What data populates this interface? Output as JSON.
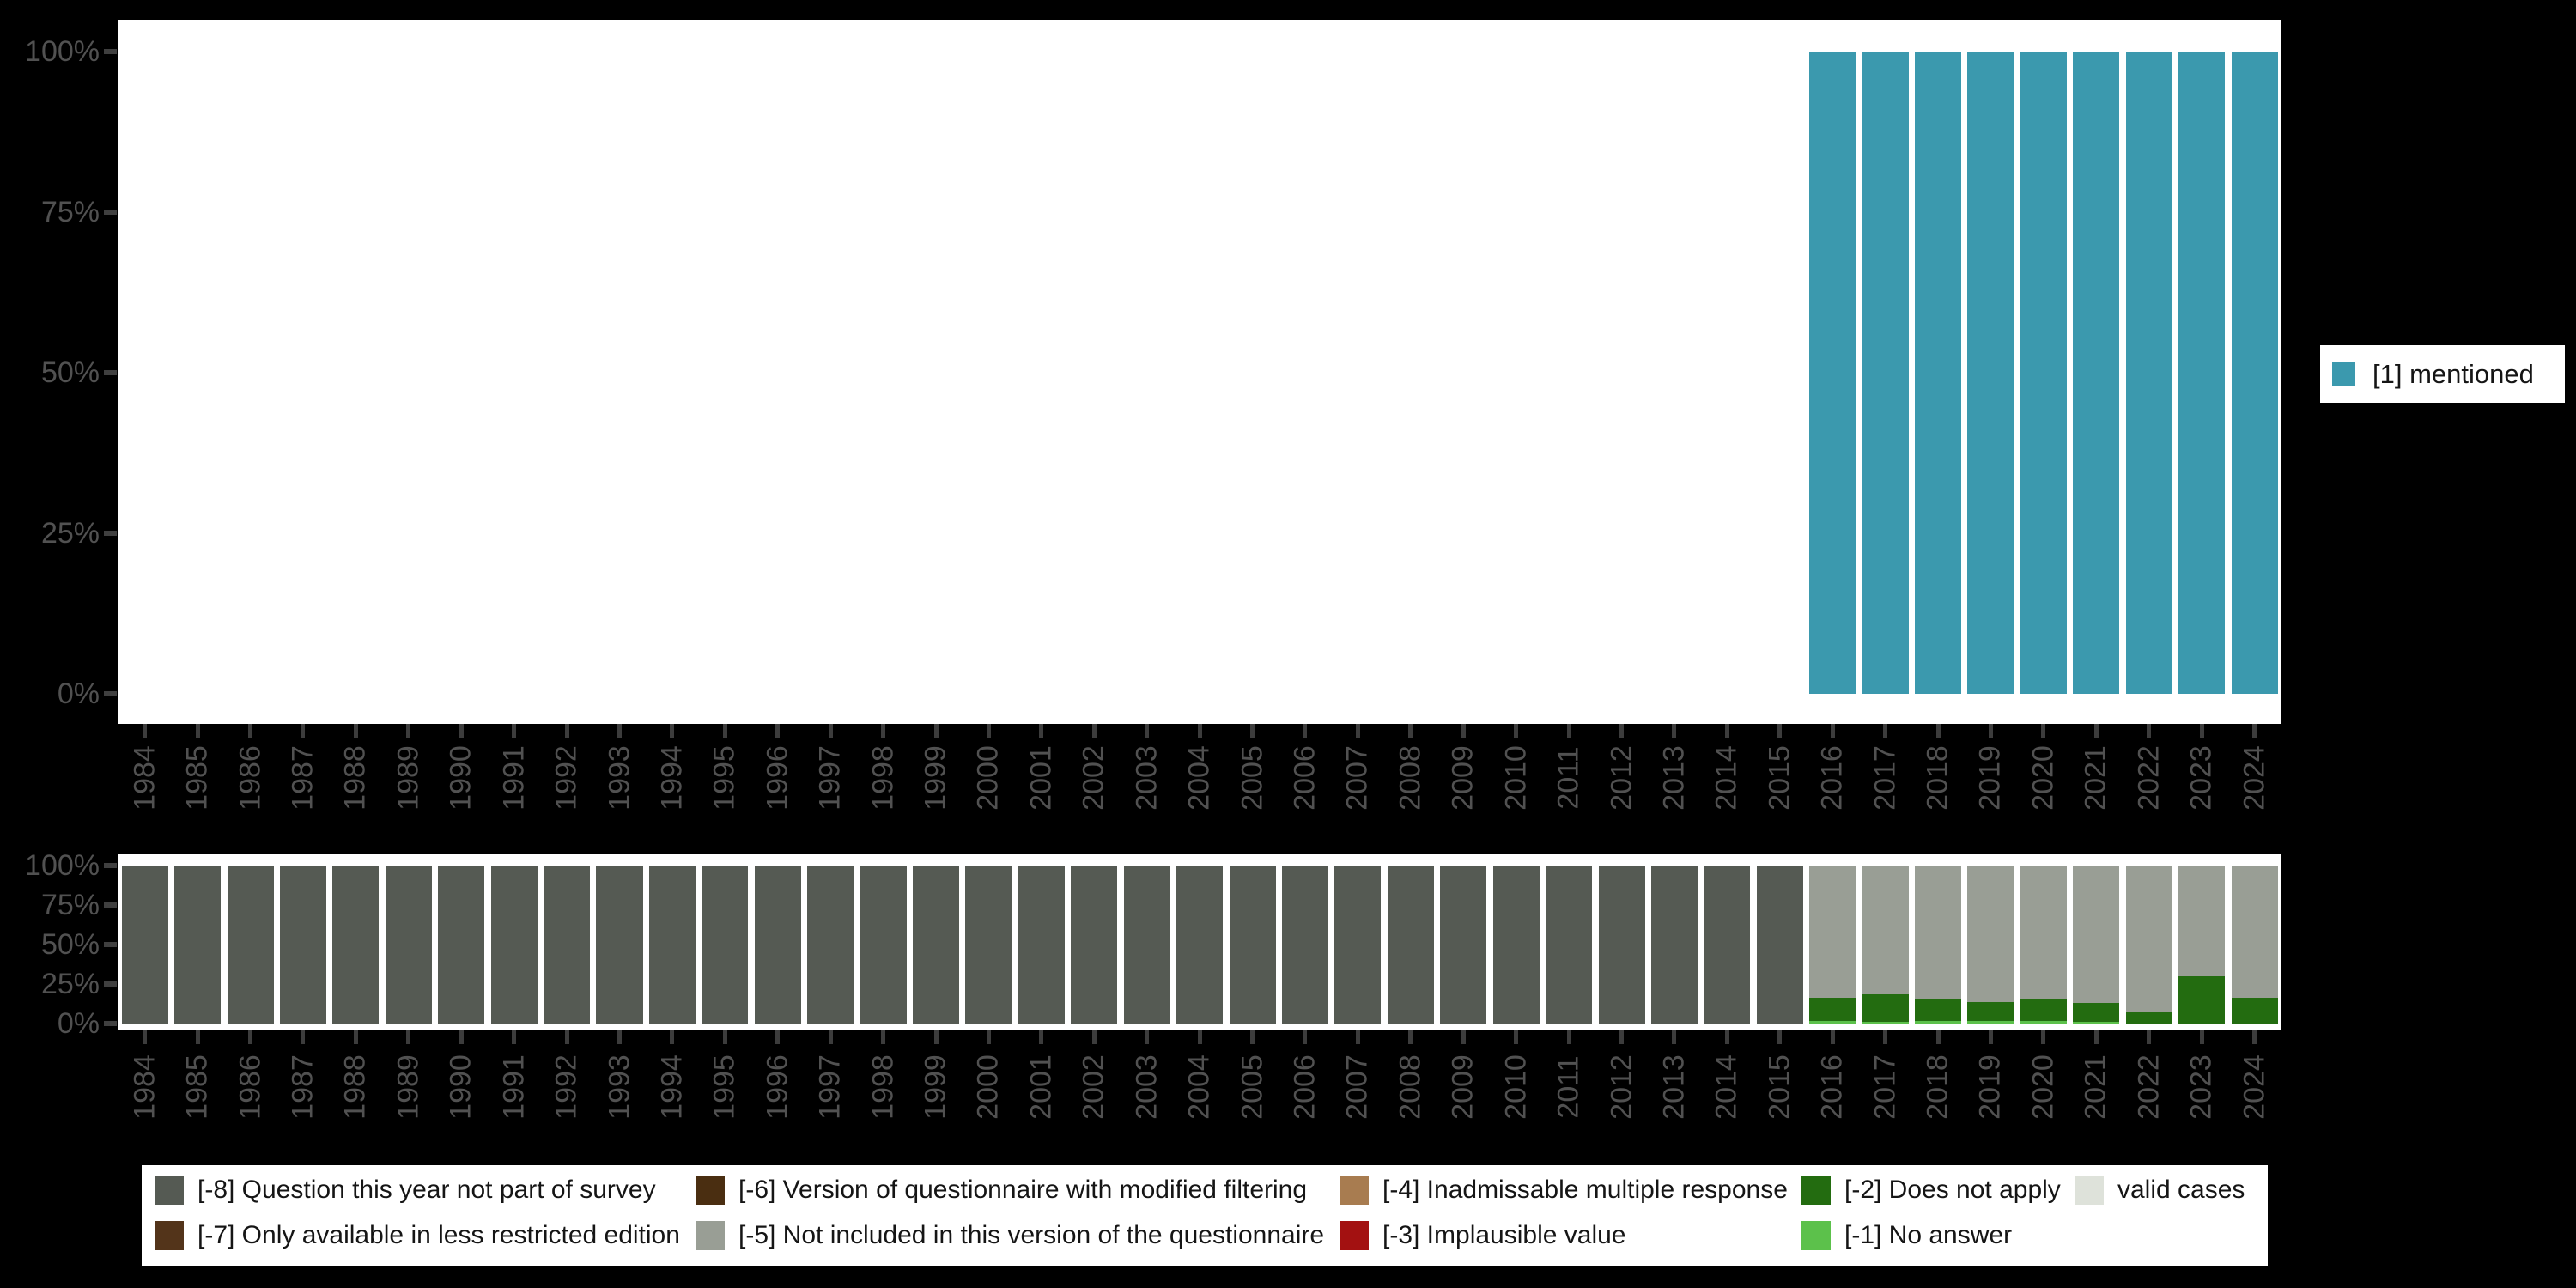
{
  "background_color": "#000000",
  "panel_color": "#ffffff",
  "axis_text_color": "#515151",
  "years": [
    "1984",
    "1985",
    "1986",
    "1987",
    "1988",
    "1989",
    "1990",
    "1991",
    "1992",
    "1993",
    "1994",
    "1995",
    "1996",
    "1997",
    "1998",
    "1999",
    "2000",
    "2001",
    "2002",
    "2003",
    "2004",
    "2005",
    "2006",
    "2007",
    "2008",
    "2009",
    "2010",
    "2011",
    "2012",
    "2013",
    "2014",
    "2015",
    "2016",
    "2017",
    "2018",
    "2019",
    "2020",
    "2021",
    "2022",
    "2023",
    "2024"
  ],
  "y_tick_labels": [
    "100%",
    "75%",
    "50%",
    "25%",
    "0%"
  ],
  "top_legend": {
    "label": "[1] mentioned",
    "color": "#3b99ae"
  },
  "chart_data": [
    {
      "type": "bar",
      "stacked": true,
      "panel": "top",
      "title": "",
      "xlabel": "",
      "ylabel": "",
      "ylim": [
        0,
        100
      ],
      "y_tick_labels": [
        "0%",
        "25%",
        "50%",
        "75%",
        "100%"
      ],
      "grid": false,
      "legend_position": "right",
      "categories": [
        "1984",
        "1985",
        "1986",
        "1987",
        "1988",
        "1989",
        "1990",
        "1991",
        "1992",
        "1993",
        "1994",
        "1995",
        "1996",
        "1997",
        "1998",
        "1999",
        "2000",
        "2001",
        "2002",
        "2003",
        "2004",
        "2005",
        "2006",
        "2007",
        "2008",
        "2009",
        "2010",
        "2011",
        "2012",
        "2013",
        "2014",
        "2015",
        "2016",
        "2017",
        "2018",
        "2019",
        "2020",
        "2021",
        "2022",
        "2023",
        "2024"
      ],
      "series": [
        {
          "name": "[1] mentioned",
          "color": "#3b99ae",
          "values": [
            0,
            0,
            0,
            0,
            0,
            0,
            0,
            0,
            0,
            0,
            0,
            0,
            0,
            0,
            0,
            0,
            0,
            0,
            0,
            0,
            0,
            0,
            0,
            0,
            0,
            0,
            0,
            0,
            0,
            0,
            0,
            0,
            100,
            100,
            100,
            100,
            100,
            100,
            100,
            100,
            100
          ]
        }
      ]
    },
    {
      "type": "bar",
      "stacked": true,
      "panel": "bottom",
      "title": "",
      "xlabel": "",
      "ylabel": "",
      "ylim": [
        0,
        100
      ],
      "y_tick_labels": [
        "0%",
        "25%",
        "50%",
        "75%",
        "100%"
      ],
      "grid": false,
      "legend_position": "bottom",
      "categories": [
        "1984",
        "1985",
        "1986",
        "1987",
        "1988",
        "1989",
        "1990",
        "1991",
        "1992",
        "1993",
        "1994",
        "1995",
        "1996",
        "1997",
        "1998",
        "1999",
        "2000",
        "2001",
        "2002",
        "2003",
        "2004",
        "2005",
        "2006",
        "2007",
        "2008",
        "2009",
        "2010",
        "2011",
        "2012",
        "2013",
        "2014",
        "2015",
        "2016",
        "2017",
        "2018",
        "2019",
        "2020",
        "2021",
        "2022",
        "2023",
        "2024"
      ],
      "series": [
        {
          "name": "[-1] No answer",
          "color": "#5cc14b",
          "values": [
            0,
            0,
            0,
            0,
            0,
            0,
            0,
            0,
            0,
            0,
            0,
            0,
            0,
            0,
            0,
            0,
            0,
            0,
            0,
            0,
            0,
            0,
            0,
            0,
            0,
            0,
            0,
            0,
            0,
            0,
            0,
            0,
            1.5,
            1,
            1.5,
            1.5,
            1.5,
            1,
            0,
            0,
            0
          ]
        },
        {
          "name": "[-2] Does not apply",
          "color": "#236c10",
          "values": [
            0,
            0,
            0,
            0,
            0,
            0,
            0,
            0,
            0,
            0,
            0,
            0,
            0,
            0,
            0,
            0,
            0,
            0,
            0,
            0,
            0,
            0,
            0,
            0,
            0,
            0,
            0,
            0,
            0,
            0,
            0,
            0,
            15,
            17.5,
            13.5,
            12,
            13.5,
            12,
            7,
            30,
            16.5
          ]
        },
        {
          "name": "[-8] Question this year not part of survey",
          "color": "#555a53",
          "values": [
            100,
            100,
            100,
            100,
            100,
            100,
            100,
            100,
            100,
            100,
            100,
            100,
            100,
            100,
            100,
            100,
            100,
            100,
            100,
            100,
            100,
            100,
            100,
            100,
            100,
            100,
            100,
            100,
            100,
            100,
            100,
            100,
            0,
            0,
            0,
            0,
            0,
            0,
            0,
            0,
            0
          ]
        },
        {
          "name": "[-5] Not included in this version of the questionnaire",
          "color": "#999e95",
          "values": [
            0,
            0,
            0,
            0,
            0,
            0,
            0,
            0,
            0,
            0,
            0,
            0,
            0,
            0,
            0,
            0,
            0,
            0,
            0,
            0,
            0,
            0,
            0,
            0,
            0,
            0,
            0,
            0,
            0,
            0,
            0,
            0,
            83.5,
            81.5,
            85,
            86.5,
            85,
            87,
            93,
            70,
            83.5
          ]
        }
      ]
    }
  ],
  "bottom_legend": {
    "columns": [
      {
        "rows": [
          {
            "label": "[-8] Question this year not part of survey",
            "color": "#555a53"
          },
          {
            "label": "[-7] Only available in less restricted edition",
            "color": "#53341a"
          }
        ]
      },
      {
        "rows": [
          {
            "label": "[-6] Version of questionnaire with modified filtering",
            "color": "#4a2e11"
          },
          {
            "label": "[-5] Not included in this version of the questionnaire",
            "color": "#999e95"
          }
        ]
      },
      {
        "rows": [
          {
            "label": "[-4] Inadmissable multiple response",
            "color": "#a87c50"
          },
          {
            "label": "[-3] Implausible value",
            "color": "#a31111"
          }
        ]
      },
      {
        "rows": [
          {
            "label": "[-2] Does not apply",
            "color": "#236c10"
          },
          {
            "label": "[-1] No answer",
            "color": "#5cc14b"
          }
        ]
      },
      {
        "rows": [
          {
            "label": "valid cases",
            "color": "#dee2da"
          }
        ]
      }
    ]
  }
}
